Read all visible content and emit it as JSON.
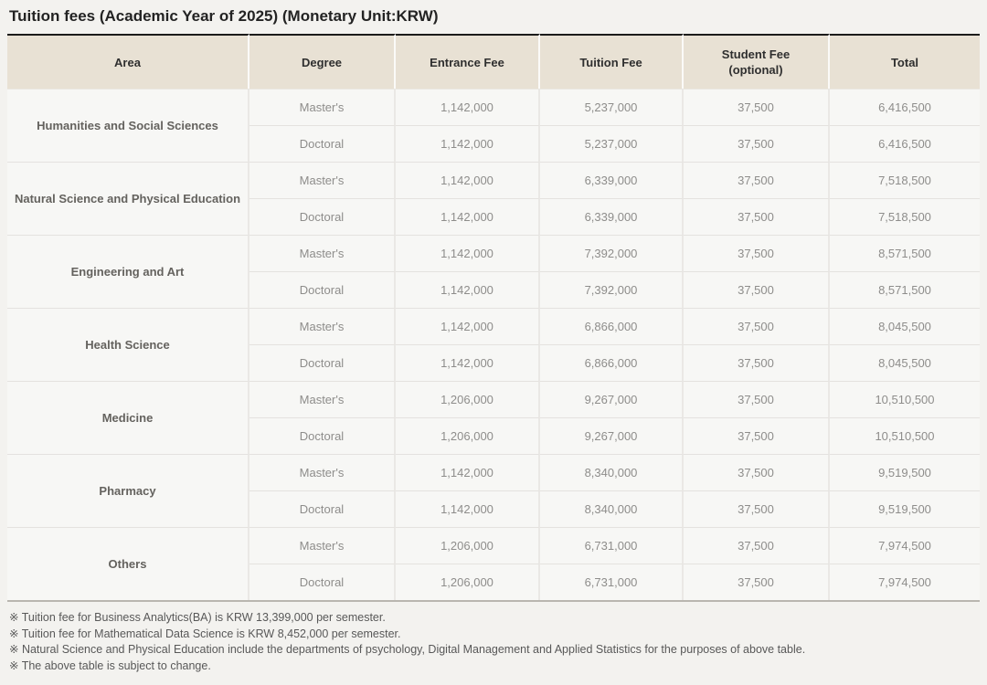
{
  "page": {
    "title": "Tuition fees (Academic Year of 2025) (Monetary Unit:KRW)"
  },
  "colors": {
    "page_background": "#f3f2ef",
    "header_background": "#e8e1d4",
    "header_top_border": "#1b1b1a",
    "cell_background": "#f7f7f5",
    "table_bottom_border": "#b9b6b0",
    "area_text": "#64625e",
    "value_text": "#8e8d8b"
  },
  "table": {
    "columns": [
      {
        "key": "area",
        "label": "Area"
      },
      {
        "key": "degree",
        "label": "Degree"
      },
      {
        "key": "entrance_fee",
        "label": "Entrance Fee"
      },
      {
        "key": "tuition_fee",
        "label": "Tuition Fee"
      },
      {
        "key": "student_fee",
        "label": "Student Fee",
        "label2": "(optional)"
      },
      {
        "key": "total",
        "label": "Total"
      }
    ],
    "groups": [
      {
        "area": "Humanities and Social Sciences",
        "rows": [
          {
            "degree": "Master's",
            "entrance_fee": "1,142,000",
            "tuition_fee": "5,237,000",
            "student_fee": "37,500",
            "total": "6,416,500"
          },
          {
            "degree": "Doctoral",
            "entrance_fee": "1,142,000",
            "tuition_fee": "5,237,000",
            "student_fee": "37,500",
            "total": "6,416,500"
          }
        ]
      },
      {
        "area": "Natural Science and Physical Education",
        "rows": [
          {
            "degree": "Master's",
            "entrance_fee": "1,142,000",
            "tuition_fee": "6,339,000",
            "student_fee": "37,500",
            "total": "7,518,500"
          },
          {
            "degree": "Doctoral",
            "entrance_fee": "1,142,000",
            "tuition_fee": "6,339,000",
            "student_fee": "37,500",
            "total": "7,518,500"
          }
        ]
      },
      {
        "area": "Engineering and Art",
        "rows": [
          {
            "degree": "Master's",
            "entrance_fee": "1,142,000",
            "tuition_fee": "7,392,000",
            "student_fee": "37,500",
            "total": "8,571,500"
          },
          {
            "degree": "Doctoral",
            "entrance_fee": "1,142,000",
            "tuition_fee": "7,392,000",
            "student_fee": "37,500",
            "total": "8,571,500"
          }
        ]
      },
      {
        "area": "Health Science",
        "rows": [
          {
            "degree": "Master's",
            "entrance_fee": "1,142,000",
            "tuition_fee": "6,866,000",
            "student_fee": "37,500",
            "total": "8,045,500"
          },
          {
            "degree": "Doctoral",
            "entrance_fee": "1,142,000",
            "tuition_fee": "6,866,000",
            "student_fee": "37,500",
            "total": "8,045,500"
          }
        ]
      },
      {
        "area": "Medicine",
        "rows": [
          {
            "degree": "Master's",
            "entrance_fee": "1,206,000",
            "tuition_fee": "9,267,000",
            "student_fee": "37,500",
            "total": "10,510,500"
          },
          {
            "degree": "Doctoral",
            "entrance_fee": "1,206,000",
            "tuition_fee": "9,267,000",
            "student_fee": "37,500",
            "total": "10,510,500"
          }
        ]
      },
      {
        "area": "Pharmacy",
        "rows": [
          {
            "degree": "Master's",
            "entrance_fee": "1,142,000",
            "tuition_fee": "8,340,000",
            "student_fee": "37,500",
            "total": "9,519,500"
          },
          {
            "degree": "Doctoral",
            "entrance_fee": "1,142,000",
            "tuition_fee": "8,340,000",
            "student_fee": "37,500",
            "total": "9,519,500"
          }
        ]
      },
      {
        "area": "Others",
        "rows": [
          {
            "degree": "Master's",
            "entrance_fee": "1,206,000",
            "tuition_fee": "6,731,000",
            "student_fee": "37,500",
            "total": "7,974,500"
          },
          {
            "degree": "Doctoral",
            "entrance_fee": "1,206,000",
            "tuition_fee": "6,731,000",
            "student_fee": "37,500",
            "total": "7,974,500"
          }
        ]
      }
    ]
  },
  "footnotes": [
    "※ Tuition fee for Business Analytics(BA) is KRW 13,399,000 per semester.",
    "※ Tuition fee for Mathematical Data Science is KRW 8,452,000 per semester.",
    "※ Natural Science and Physical Education include the departments of psychology, Digital Management and Applied Statistics for the purposes of above table.",
    "※ The above table is subject to change."
  ]
}
